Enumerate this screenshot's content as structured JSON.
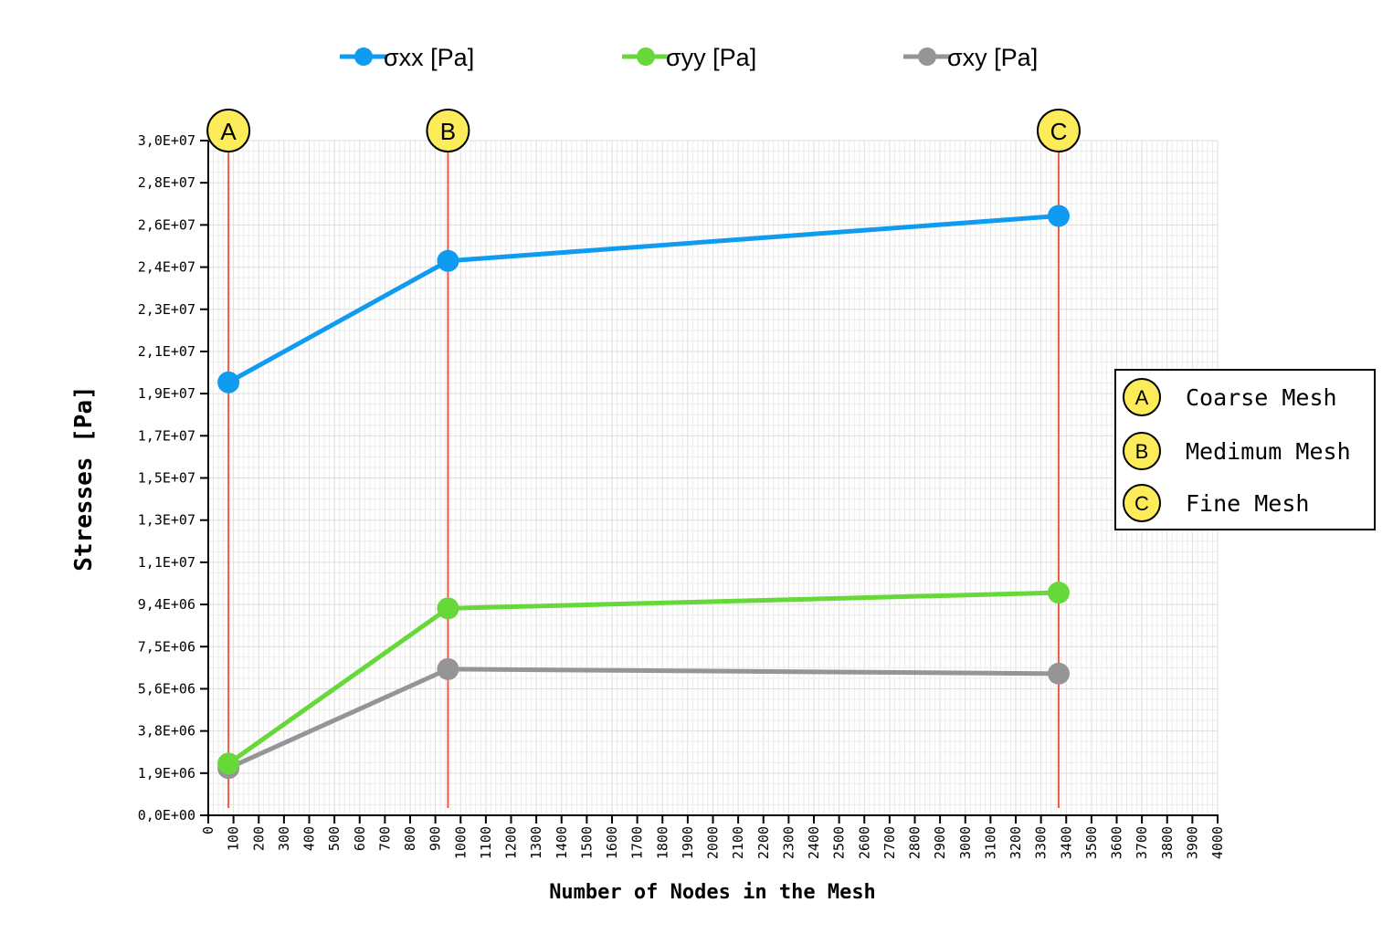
{
  "chart_data": {
    "type": "line",
    "title": "",
    "xlabel": "Number of Nodes in the Mesh",
    "ylabel": "Stresses  [Pa]",
    "xlim": [
      0,
      4000
    ],
    "ylim": [
      0,
      30000000
    ],
    "x_ticks": [
      "0",
      "100",
      "200",
      "300",
      "400",
      "500",
      "600",
      "700",
      "800",
      "900",
      "1000",
      "1100",
      "1200",
      "1300",
      "1400",
      "1500",
      "1600",
      "1700",
      "1800",
      "1900",
      "2000",
      "2100",
      "2200",
      "2300",
      "2400",
      "2500",
      "2600",
      "2700",
      "2800",
      "2900",
      "3000",
      "3100",
      "3200",
      "3300",
      "3400",
      "3500",
      "3600",
      "3700",
      "3800",
      "3900",
      "4000"
    ],
    "y_ticks": [
      "0,0E+00",
      "1,9E+06",
      "3,8E+06",
      "5,6E+06",
      "7,5E+06",
      "9,4E+06",
      "1,1E+07",
      "1,3E+07",
      "1,5E+07",
      "1,7E+07",
      "1,9E+07",
      "2,1E+07",
      "2,3E+07",
      "2,4E+07",
      "2,6E+07",
      "2,8E+07",
      "3,0E+07"
    ],
    "grid": true,
    "legend_position": "top",
    "x": [
      80,
      950,
      3370
    ],
    "series": [
      {
        "name": "σxx [Pa]",
        "color": "#0f9cf0",
        "values": [
          19250000,
          24650000,
          26650000
        ]
      },
      {
        "name": "σyy [Pa]",
        "color": "#66d83a",
        "values": [
          2300000,
          9200000,
          9900000
        ]
      },
      {
        "name": "σxy [Pa]",
        "color": "#959595",
        "values": [
          2100000,
          6500000,
          6300000
        ]
      }
    ],
    "mesh_markers": [
      {
        "letter": "A",
        "x": 80,
        "label": "Coarse Mesh"
      },
      {
        "letter": "B",
        "x": 950,
        "label": "Medimum Mesh"
      },
      {
        "letter": "C",
        "x": 3370,
        "label": "Fine Mesh"
      }
    ],
    "marker_line_color": "#ef5a45",
    "marker_fill_color": "#fdec5a"
  }
}
